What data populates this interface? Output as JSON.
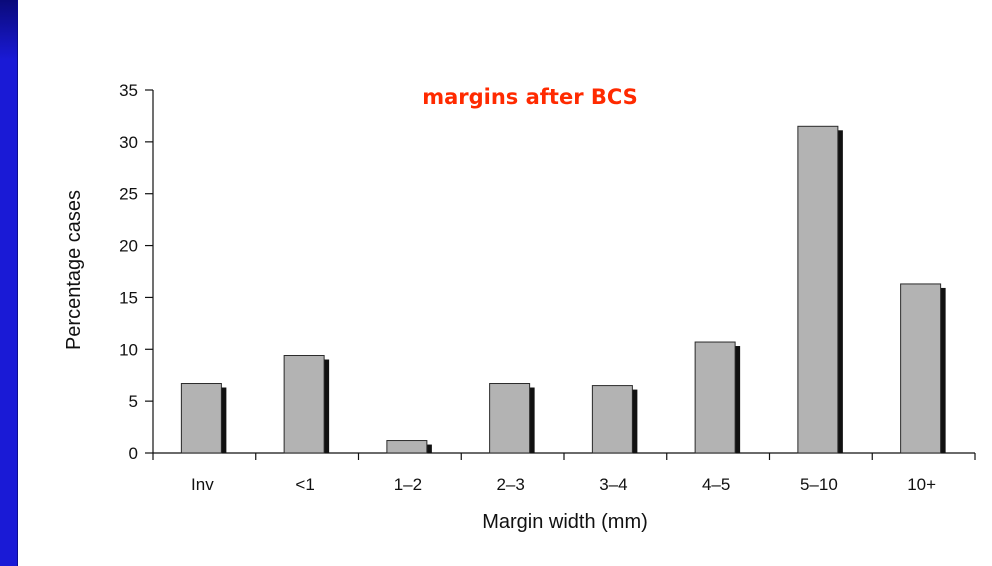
{
  "colors": {
    "slide_background": "#1a1ad6",
    "title": "#ff2a00",
    "bar_fill": "#b3b3b3",
    "bar_shadow": "#111111"
  },
  "chart_data": {
    "type": "bar",
    "title": "margins after BCS",
    "xlabel": "Margin width (mm)",
    "ylabel": "Percentage cases",
    "categories": [
      "Inv",
      "<1",
      "1–2",
      "2–3",
      "3–4",
      "4–5",
      "5–10",
      "10+"
    ],
    "values": [
      6.7,
      9.4,
      1.2,
      6.7,
      6.5,
      10.7,
      31.5,
      16.3
    ],
    "ylim": [
      0,
      35
    ],
    "yticks": [
      0,
      5,
      10,
      15,
      20,
      25,
      30,
      35
    ],
    "grid": false,
    "legend": "none"
  }
}
